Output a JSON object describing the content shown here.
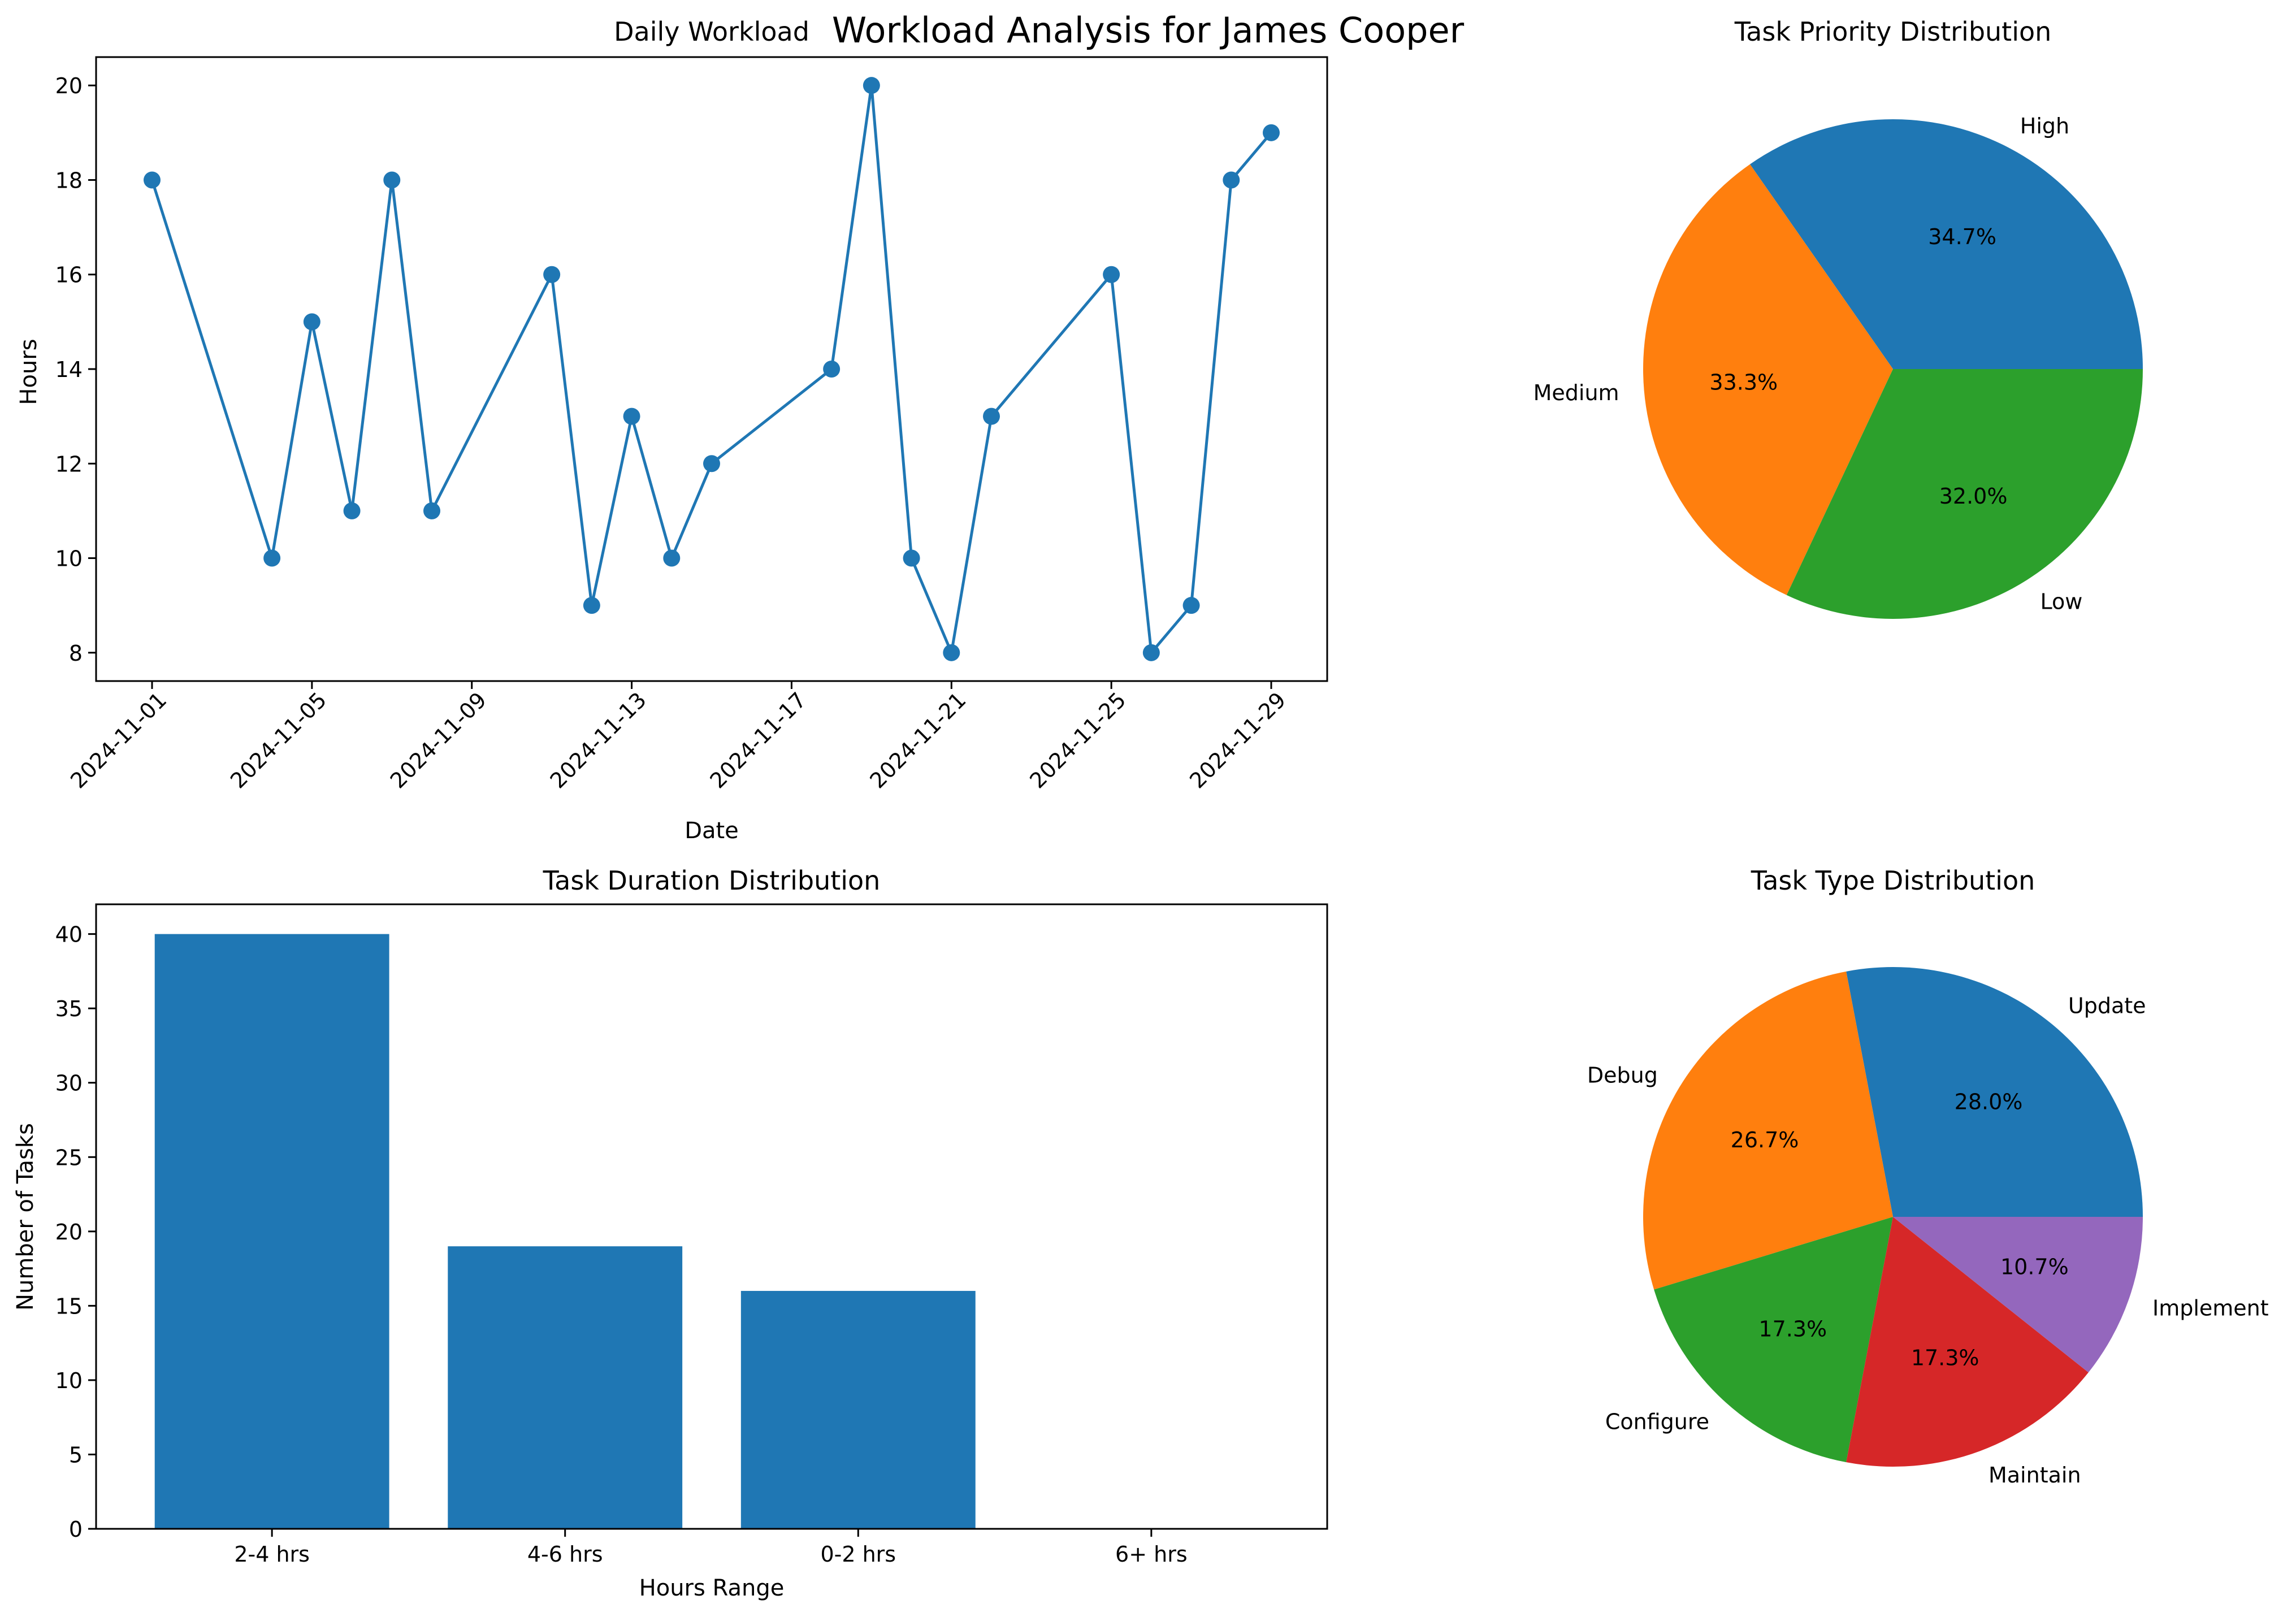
{
  "figure_title": "Workload Analysis for James Cooper",
  "chart_data": [
    {
      "type": "line",
      "title": "Daily Workload",
      "xlabel": "Date",
      "ylabel": "Hours",
      "x": [
        "2024-11-01",
        "2024-11-04",
        "2024-11-05",
        "2024-11-06",
        "2024-11-07",
        "2024-11-08",
        "2024-11-11",
        "2024-11-12",
        "2024-11-13",
        "2024-11-14",
        "2024-11-15",
        "2024-11-18",
        "2024-11-19",
        "2024-11-20",
        "2024-11-21",
        "2024-11-22",
        "2024-11-25",
        "2024-11-26",
        "2024-11-27",
        "2024-11-28",
        "2024-11-29"
      ],
      "values": [
        18,
        10,
        15,
        11,
        18,
        11,
        16,
        9,
        13,
        10,
        12,
        14,
        20,
        10,
        8,
        13,
        16,
        8,
        9,
        18,
        19
      ],
      "xticks": [
        "2024-11-01",
        "2024-11-05",
        "2024-11-09",
        "2024-11-13",
        "2024-11-17",
        "2024-11-21",
        "2024-11-25",
        "2024-11-29"
      ],
      "yticks": [
        8,
        10,
        12,
        14,
        16,
        18,
        20
      ],
      "ylim": [
        7.4,
        20.6
      ],
      "xlim": [
        "2024-10-30T14:24",
        "2024-11-30T09:36"
      ],
      "color": "#1f77b4",
      "grid": false
    },
    {
      "type": "pie",
      "title": "Task Priority Distribution",
      "labels": [
        "High",
        "Medium",
        "Low"
      ],
      "values": [
        34.7,
        33.3,
        32.0
      ],
      "pct_labels": [
        "34.7%",
        "33.3%",
        "32.0%"
      ],
      "colors": [
        "#1f77b4",
        "#ff7f0e",
        "#2ca02c"
      ]
    },
    {
      "type": "bar",
      "title": "Task Duration Distribution",
      "xlabel": "Hours Range",
      "ylabel": "Number of Tasks",
      "categories": [
        "2-4 hrs",
        "4-6 hrs",
        "0-2 hrs",
        "6+ hrs"
      ],
      "values": [
        40,
        19,
        16,
        0
      ],
      "yticks": [
        0,
        5,
        10,
        15,
        20,
        25,
        30,
        35,
        40
      ],
      "ylim": [
        0,
        42
      ],
      "color": "#1f77b4",
      "grid": false
    },
    {
      "type": "pie",
      "title": "Task Type Distribution",
      "labels": [
        "Update",
        "Debug",
        "Configure",
        "Maintain",
        "Implement"
      ],
      "values": [
        28.0,
        26.7,
        17.3,
        17.3,
        10.7
      ],
      "pct_labels": [
        "28.0%",
        "26.7%",
        "17.3%",
        "17.3%",
        "10.7%"
      ],
      "colors": [
        "#1f77b4",
        "#ff7f0e",
        "#2ca02c",
        "#d62728",
        "#9467bd"
      ]
    }
  ]
}
